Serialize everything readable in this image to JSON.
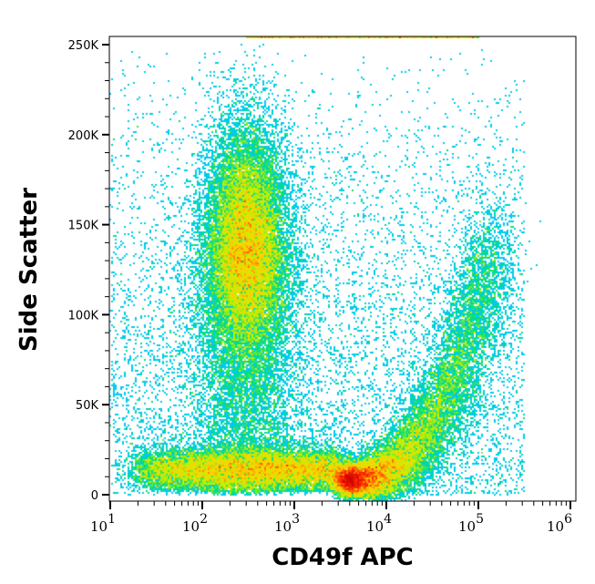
{
  "chart_data": {
    "type": "heatmap",
    "subtype": "flow-cytometry density dot plot",
    "xlabel": "CD49f APC",
    "ylabel": "Side Scatter",
    "x_scale": "log",
    "xlim": [
      10,
      1000000
    ],
    "ylim": [
      0,
      255000
    ],
    "x_ticks": [
      {
        "value": 10,
        "base": "10",
        "exp": "1"
      },
      {
        "value": 100,
        "base": "10",
        "exp": "2"
      },
      {
        "value": 1000,
        "base": "10",
        "exp": "3"
      },
      {
        "value": 10000,
        "base": "10",
        "exp": "4"
      },
      {
        "value": 100000,
        "base": "10",
        "exp": "5"
      },
      {
        "value": 1000000,
        "base": "10",
        "exp": "6"
      }
    ],
    "y_ticks": [
      {
        "value": 0,
        "label": "0"
      },
      {
        "value": 50000,
        "label": "50K"
      },
      {
        "value": 100000,
        "label": "100K"
      },
      {
        "value": 150000,
        "label": "150K"
      },
      {
        "value": 200000,
        "label": "200K"
      },
      {
        "value": 250000,
        "label": "250K"
      }
    ],
    "grid": false,
    "colormap": [
      "#0000ff",
      "#00c8ff",
      "#00e070",
      "#c8f000",
      "#ffd000",
      "#ff3000",
      "#d00000"
    ],
    "populations": [
      {
        "center_x": 300,
        "center_y": 140000,
        "spread_log_x": 0.22,
        "spread_y": 28000,
        "weight": 0.33
      },
      {
        "x_range": [
          20,
          3000
        ],
        "center_y": 12000,
        "spread_y": 6000,
        "weight": 0.22
      },
      {
        "arm_from": [
          4000,
          10000
        ],
        "arm_peak": [
          10000,
          18000
        ],
        "arm_to": [
          150000,
          140000
        ],
        "weight": 0.3
      },
      {
        "x_range": [
          10,
          300000
        ],
        "y_range": [
          0,
          250000
        ],
        "weight": 0.08,
        "note_density": "sparse"
      },
      {
        "x_range": [
          300,
          100000
        ],
        "center_y": 255000,
        "weight": 0.02
      }
    ]
  }
}
